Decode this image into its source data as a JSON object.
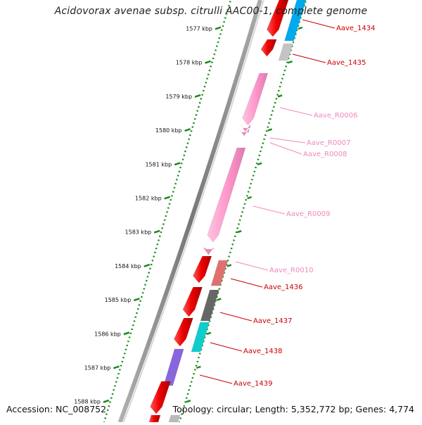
{
  "title": "Acidovorax avenae subsp. citrulli AAC00-1, complete genome",
  "footer": {
    "accession": "Accession: NC_008752",
    "summary": "Topology: circular; Length: 5,352,772 bp; Genes: 4,774"
  },
  "colors": {
    "cds": "#e80000",
    "rna": "#ff99cc",
    "gene_label": "#cc0000",
    "rna_label": "#ee88bb",
    "ruler": "#1a8a1a",
    "backbone": "#888888"
  },
  "ruler": [
    {
      "label": "1577 kbp"
    },
    {
      "label": "1578 kbp"
    },
    {
      "label": "1579 kbp"
    },
    {
      "label": "1580 kbp"
    },
    {
      "label": "1581 kbp"
    },
    {
      "label": "1582 kbp"
    },
    {
      "label": "1583 kbp"
    },
    {
      "label": "1584 kbp"
    },
    {
      "label": "1585 kbp"
    },
    {
      "label": "1586 kbp"
    },
    {
      "label": "1587 kbp"
    },
    {
      "label": "1588 kbp"
    }
  ],
  "labels": [
    {
      "text": "Aave_1434",
      "kind": "cds"
    },
    {
      "text": "Aave_1435",
      "kind": "cds"
    },
    {
      "text": "Aave_R0006",
      "kind": "rna"
    },
    {
      "text": "Aave_R0007",
      "kind": "rna"
    },
    {
      "text": "Aave_R0008",
      "kind": "rna"
    },
    {
      "text": "Aave_R0009",
      "kind": "rna"
    },
    {
      "text": "Aave_R0010",
      "kind": "rna"
    },
    {
      "text": "Aave_1436",
      "kind": "cds"
    },
    {
      "text": "Aave_1437",
      "kind": "cds"
    },
    {
      "text": "Aave_1438",
      "kind": "cds"
    },
    {
      "text": "Aave_1439",
      "kind": "cds"
    }
  ]
}
